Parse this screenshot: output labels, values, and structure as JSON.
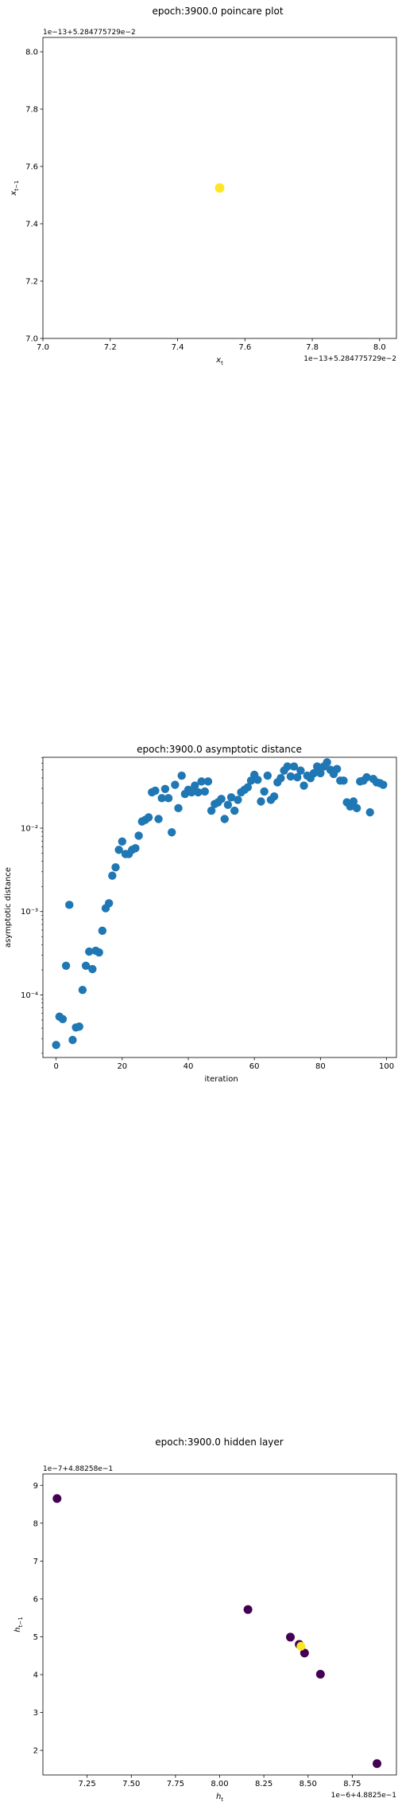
{
  "chart_data": [
    {
      "type": "scatter",
      "title": "epoch:3900.0 poincare plot",
      "xlabel": "x_t",
      "ylabel": "x_{t−1}",
      "x_offset_text": "1e−13+5.284775729e−2",
      "y_offset_text": "1e−13+5.284775729e−2",
      "xlim": [
        7.0,
        8.05
      ],
      "ylim": [
        7.0,
        8.05
      ],
      "xticks": [
        "7.0",
        "7.2",
        "7.4",
        "7.6",
        "7.8",
        "8.0"
      ],
      "yticks": [
        "7.0",
        "7.2",
        "7.4",
        "7.6",
        "7.8",
        "8.0"
      ],
      "points": [
        {
          "x": 7.525,
          "y": 7.525,
          "color": "#fde725"
        }
      ]
    },
    {
      "type": "scatter",
      "title": "epoch:3900.0 asymptotic distance",
      "xlabel": "iteration",
      "ylabel": "asymptotic distance",
      "yscale": "log",
      "xlim": [
        -4,
        103
      ],
      "ylim_log10": [
        -4.75,
        -1.15
      ],
      "xticks": [
        "0",
        "20",
        "40",
        "60",
        "80",
        "100"
      ],
      "yticks": [
        "10⁻⁴",
        "10⁻³",
        "10⁻²"
      ],
      "color": "#1f77b4",
      "x": [
        0,
        1,
        2,
        3,
        4,
        5,
        6,
        7,
        8,
        9,
        10,
        11,
        12,
        13,
        14,
        15,
        16,
        17,
        18,
        19,
        20,
        21,
        22,
        23,
        24,
        25,
        26,
        27,
        28,
        29,
        30,
        31,
        32,
        33,
        34,
        35,
        36,
        37,
        38,
        39,
        40,
        41,
        42,
        43,
        44,
        45,
        46,
        47,
        48,
        49,
        50,
        51,
        52,
        53,
        54,
        55,
        56,
        57,
        58,
        59,
        60,
        61,
        62,
        63,
        64,
        65,
        66,
        67,
        68,
        69,
        70,
        71,
        72,
        73,
        74,
        75,
        76,
        77,
        78,
        79,
        80,
        81,
        82,
        83,
        84,
        85,
        86,
        87,
        88,
        89,
        90,
        91,
        92,
        93,
        94,
        95,
        96,
        97,
        98,
        99
      ],
      "log10y": [
        -4.6,
        -4.26,
        -4.29,
        -3.65,
        -2.92,
        -4.54,
        -4.39,
        -4.38,
        -3.94,
        -3.65,
        -3.48,
        -3.69,
        -3.47,
        -3.49,
        -3.23,
        -2.96,
        -2.9,
        -2.57,
        -2.47,
        -2.26,
        -2.16,
        -2.31,
        -2.31,
        -2.26,
        -2.24,
        -2.09,
        -1.92,
        -1.9,
        -1.87,
        -1.57,
        -1.55,
        -1.89,
        -1.64,
        -1.53,
        -1.64,
        -2.05,
        -1.48,
        -1.76,
        -1.37,
        -1.59,
        -1.54,
        -1.57,
        -1.49,
        -1.57,
        -1.44,
        -1.56,
        -1.44,
        -1.79,
        -1.71,
        -1.69,
        -1.65,
        -1.89,
        -1.72,
        -1.63,
        -1.79,
        -1.66,
        -1.57,
        -1.54,
        -1.51,
        -1.43,
        -1.36,
        -1.42,
        -1.68,
        -1.56,
        -1.37,
        -1.66,
        -1.62,
        -1.45,
        -1.4,
        -1.31,
        -1.26,
        -1.38,
        -1.26,
        -1.39,
        -1.31,
        -1.49,
        -1.37,
        -1.4,
        -1.34,
        -1.26,
        -1.34,
        -1.26,
        -1.21,
        -1.3,
        -1.35,
        -1.29,
        -1.43,
        -1.43,
        -1.69,
        -1.74,
        -1.68,
        -1.76,
        -1.44,
        -1.43,
        -1.39,
        -1.81,
        -1.41,
        -1.45,
        -1.46,
        -1.48
      ]
    },
    {
      "type": "scatter",
      "title": "epoch:3900.0 hidden layer",
      "xlabel": "h_t",
      "ylabel": "h_{t−1}",
      "x_offset_text": "1e−6+4.8825e−1",
      "y_offset_text": "1e−7+4.88258e−1",
      "xlim": [
        7.0,
        9.0
      ],
      "ylim": [
        1.35,
        9.3
      ],
      "xticks": [
        "7.25",
        "7.50",
        "7.75",
        "8.00",
        "8.25",
        "8.50",
        "8.75"
      ],
      "yticks": [
        "2",
        "3",
        "4",
        "5",
        "6",
        "7",
        "8",
        "9"
      ],
      "points": [
        {
          "x": 7.08,
          "y": 8.65,
          "color": "#440154"
        },
        {
          "x": 8.16,
          "y": 5.72,
          "color": "#440154"
        },
        {
          "x": 8.4,
          "y": 4.99,
          "color": "#440154"
        },
        {
          "x": 8.45,
          "y": 4.8,
          "color": "#440154"
        },
        {
          "x": 8.48,
          "y": 4.57,
          "color": "#440154"
        },
        {
          "x": 8.57,
          "y": 4.01,
          "color": "#440154"
        },
        {
          "x": 8.89,
          "y": 1.65,
          "color": "#440154"
        },
        {
          "x": 8.46,
          "y": 4.75,
          "color": "#fde725"
        }
      ]
    }
  ]
}
